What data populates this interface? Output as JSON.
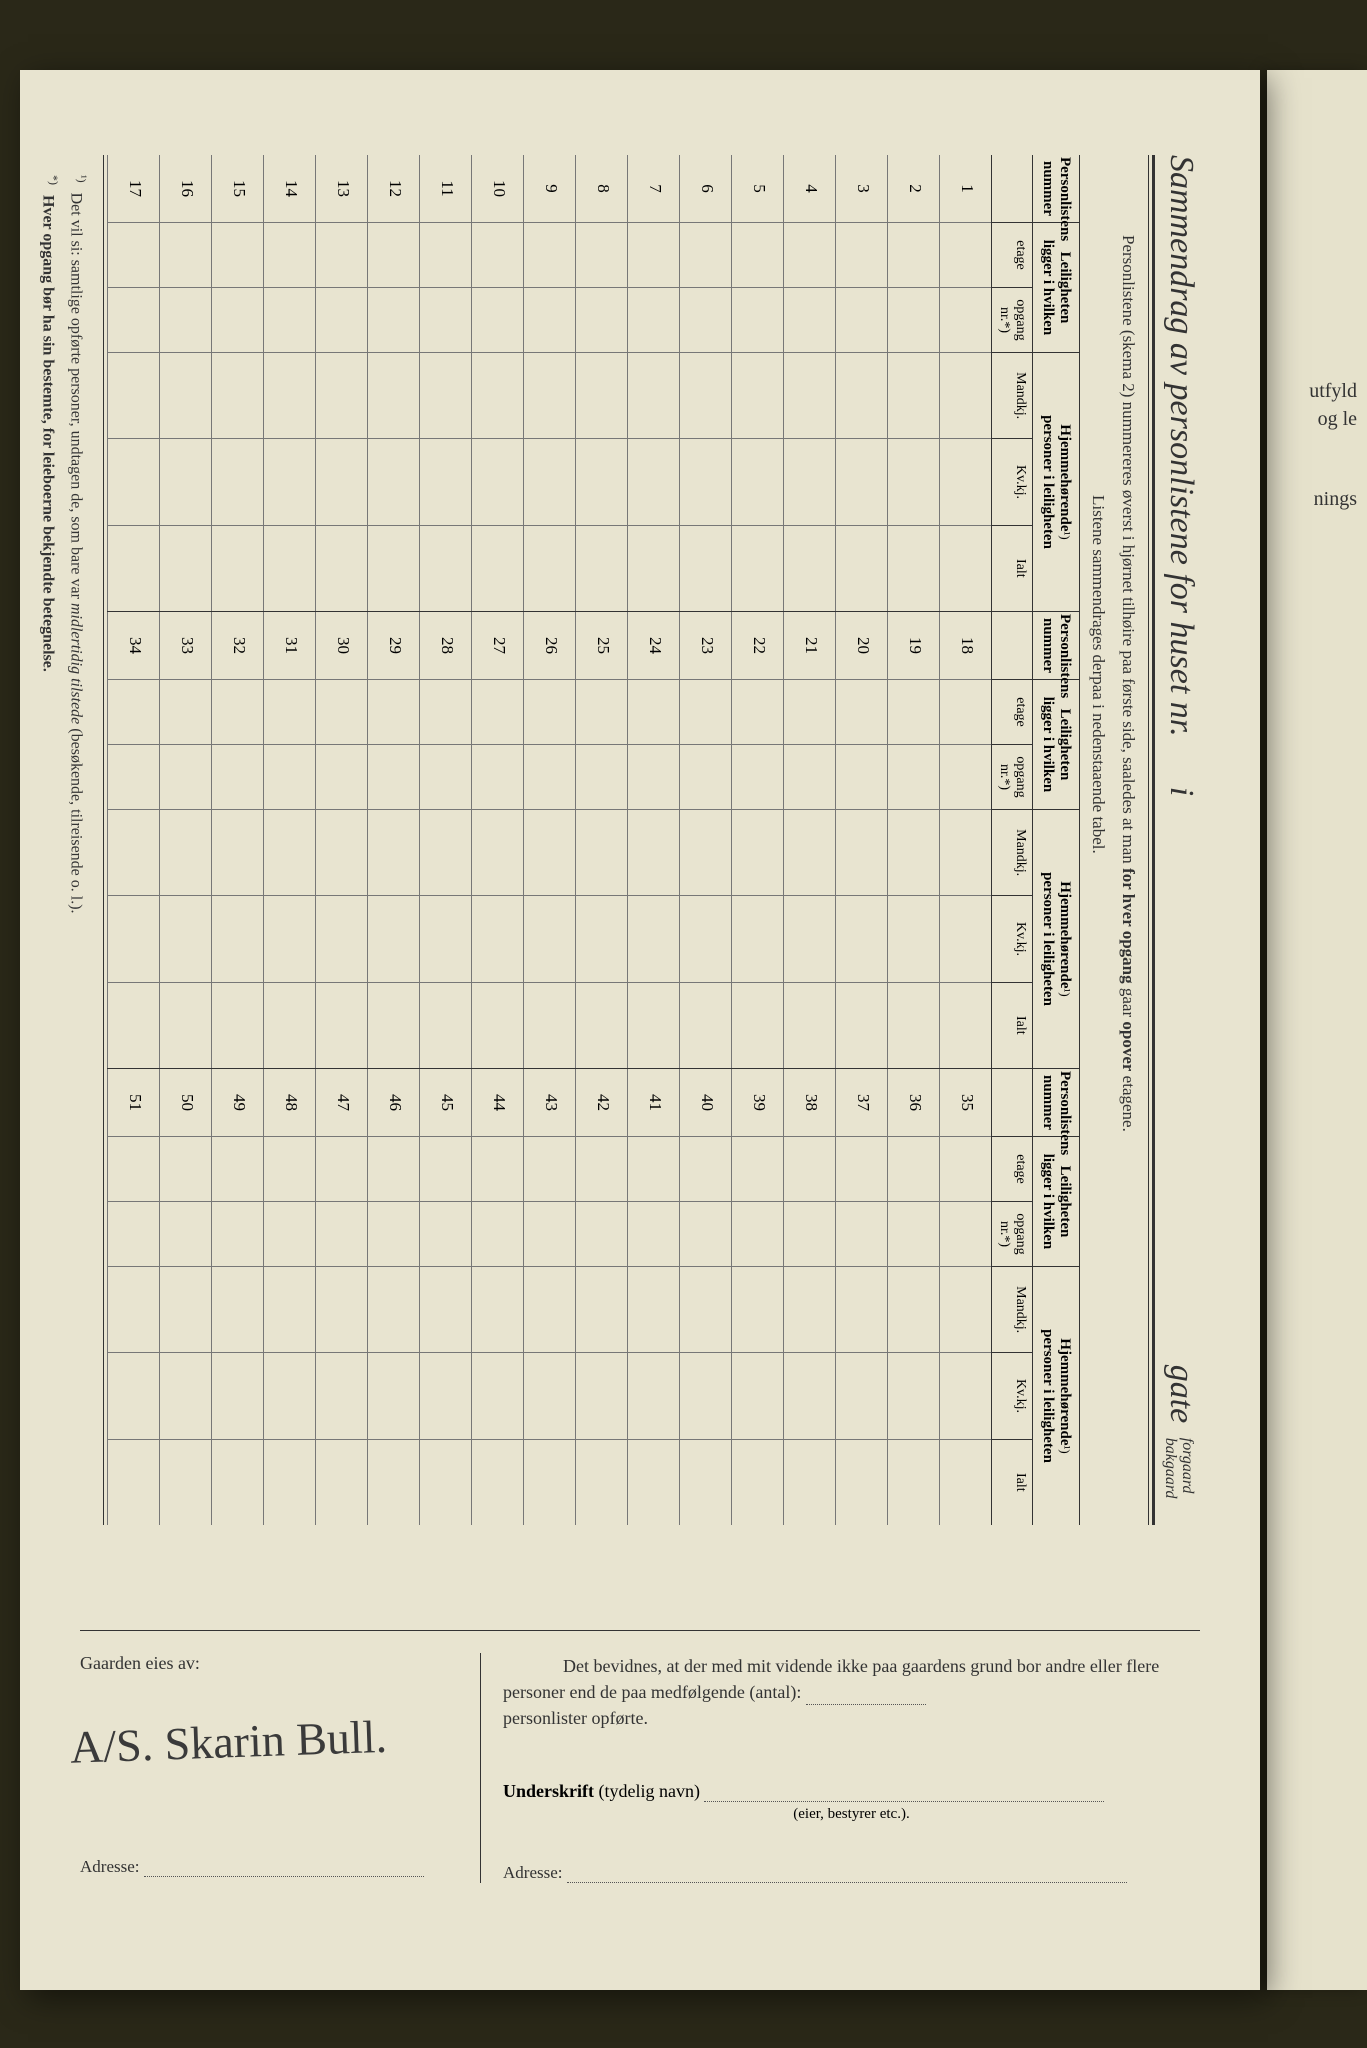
{
  "title": {
    "main": "Sammendrag av personlistene for huset nr.",
    "i_label": "i",
    "gate": "gate",
    "forgaard": "forgaard",
    "bakgaard": "bakgaard"
  },
  "instructions": {
    "line1_a": "Personlistene (skema 2) nummereres øverst i hjørnet tilhøire paa første side, saaledes at man",
    "line1_b": "for hver opgang",
    "line1_c": "gaar",
    "line1_d": "opover",
    "line1_e": "etagene.",
    "line2": "Listene sammendrages derpaa i nedenstaaende tabel."
  },
  "headers": {
    "col_a_1": "Personlistens",
    "col_a_2": "nummer",
    "col_b_1": "Leiligheten",
    "col_b_2": "ligger i hvilken",
    "sub_b1": "etage",
    "sub_b2_1": "opgang",
    "sub_b2_2": "nr.*)",
    "col_c_1": "Hjemmehørende",
    "col_c_sup": "¹)",
    "col_c_2": "personer i leiligheten",
    "sub_c1": "Mandkj.",
    "sub_c2": "Kv.kj.",
    "sub_c3": "Ialt"
  },
  "row_numbers": {
    "block1": [
      "1",
      "2",
      "3",
      "4",
      "5",
      "6",
      "7",
      "8",
      "9",
      "10",
      "11",
      "12",
      "13",
      "14",
      "15",
      "16",
      "17"
    ],
    "block2": [
      "18",
      "19",
      "20",
      "21",
      "22",
      "23",
      "24",
      "25",
      "26",
      "27",
      "28",
      "29",
      "30",
      "31",
      "32",
      "33",
      "34"
    ],
    "block3": [
      "35",
      "36",
      "37",
      "38",
      "39",
      "40",
      "41",
      "42",
      "43",
      "44",
      "45",
      "46",
      "47",
      "48",
      "49",
      "50",
      "51"
    ]
  },
  "footnotes": {
    "f1_marker": "¹)",
    "f1_a": "Det vil si: samtlige opførte personer, undtagen de, som bare var",
    "f1_em": "midlertidig tilstede",
    "f1_b": "(besøkende, tilreisende o. l.).",
    "f2_marker": "*)",
    "f2": "Hver opgang bør ha sin bestemte, for leieboerne bekjendte betegnelse."
  },
  "bottom": {
    "owner_label": "Gaarden eies av:",
    "signature": "A/S. Skarin Bull.",
    "adresse": "Adresse:",
    "bevid_1": "Det bevidnes, at der med mit vidende ikke paa gaardens grund bor andre eller flere personer end de paa medfølgende (antal):",
    "bevid_2": "personlister opførte.",
    "underskrift": "Underskrift",
    "tydelig": "(tydelig navn)",
    "eier": "(eier, bestyrer etc.)."
  },
  "right_strip": {
    "t1": "utfyld",
    "t2": "og le",
    "t3": "nings"
  }
}
